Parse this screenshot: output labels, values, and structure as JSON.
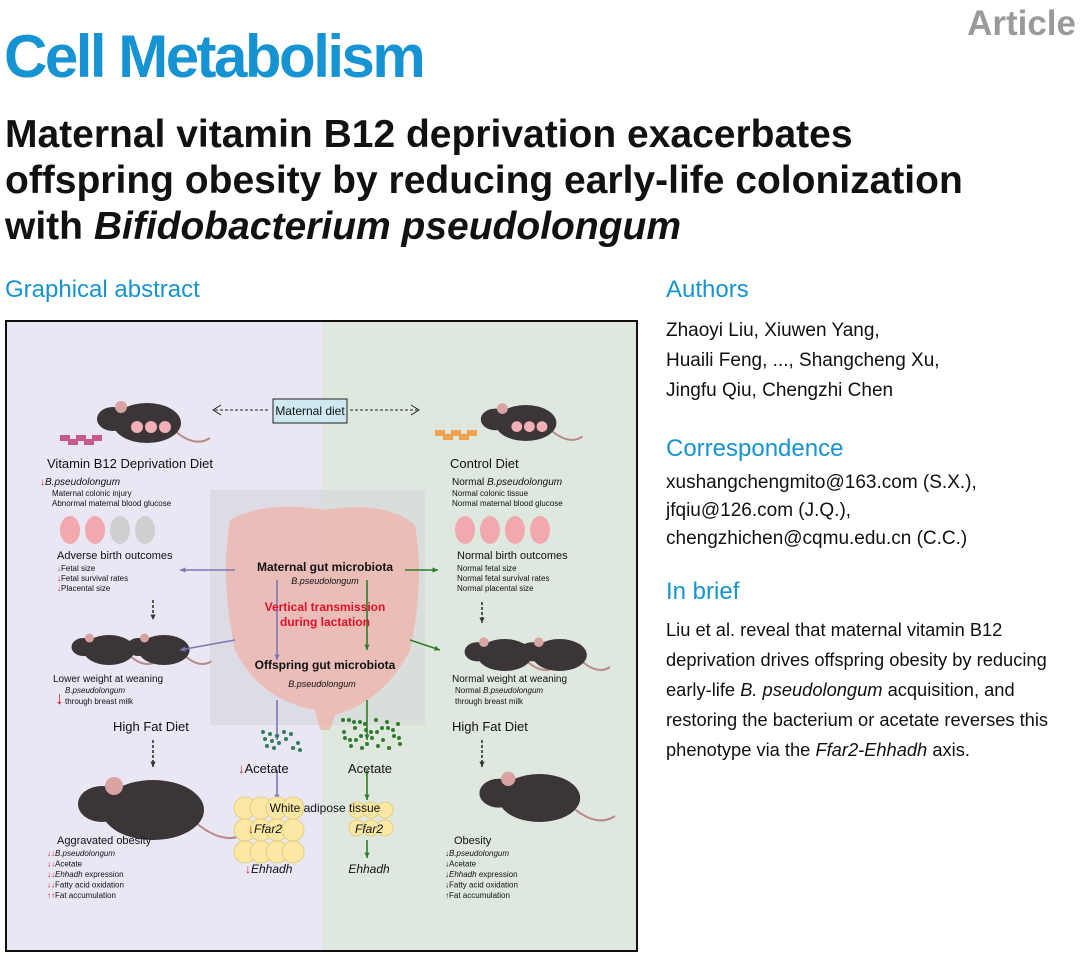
{
  "header": {
    "journal": "Cell Metabolism",
    "type": "Article"
  },
  "title": {
    "lines": [
      "Maternal vitamin B12 deprivation exacerbates",
      "offspring obesity by reducing early-life colonization",
      "with"
    ],
    "italic": "Bifidobacterium pseudolongum"
  },
  "graphical_abstract": {
    "label": "Graphical abstract",
    "maternal_diet": "Maternal diet",
    "left": {
      "diet": "Vitamin B12 Deprivation Diet",
      "bacterium": {
        "arrow": "↓",
        "italic": "B.pseudolongum"
      },
      "maternal_notes": [
        "Maternal colonic injury",
        "Abnormal maternal blood glucose"
      ],
      "birth_heading": "Adverse birth outcomes",
      "birth_items": [
        {
          "arrow": "↓",
          "text": "Fetal size"
        },
        {
          "arrow": "↓",
          "text": "Fetal survival rates"
        },
        {
          "arrow": "↓",
          "text": "Placental size"
        }
      ],
      "weaning_heading": "Lower weight at weaning",
      "weaning_arrow": "↓",
      "weaning_lines": [
        {
          "italic": "B.pseudolongum"
        },
        {
          "text": "through breast milk"
        }
      ],
      "hfd": "High Fat Diet",
      "outcome_heading": "Aggravated obesity",
      "outcome_items": [
        {
          "arrow": "↓↓",
          "italic": "B.pseudolongum"
        },
        {
          "arrow": "↓↓",
          "text": "Acetate"
        },
        {
          "arrow": "↓↓",
          "italic": "Ehhadh",
          "text": "expression"
        },
        {
          "arrow": "↓↓",
          "text": "Fatty acid oxidation"
        },
        {
          "arrow": "↑↑",
          "text": "Fat accumulation"
        }
      ]
    },
    "center": {
      "maternal_microbiota": "Maternal gut microbiota",
      "maternal_bacterium": "B.pseudolongum",
      "transmission": [
        "Vertical transmission",
        "during lactation"
      ],
      "offspring_microbiota": "Offspring gut microbiota",
      "offspring_bacterium": "B.pseudolongum",
      "acetate_left": {
        "arrow": "↓",
        "text": "Acetate"
      },
      "acetate_right": "Acetate",
      "wat": "White adipose tissue",
      "ffar2_left": {
        "arrow": "↓",
        "italic": "Ffar2"
      },
      "ffar2_right": "Ffar2",
      "ehhadh_left": {
        "arrow": "↓",
        "italic": "Ehhadh"
      },
      "ehhadh_right": "Ehhadh"
    },
    "right": {
      "diet": "Control Diet",
      "bacterium": {
        "lead": "Normal",
        "italic": "B.pseudolongum"
      },
      "maternal_notes": [
        "Normal colonic tissue",
        "Normal maternal blood glucose"
      ],
      "birth_heading": "Normal birth outcomes",
      "birth_items": [
        {
          "text": "Normal fetal size"
        },
        {
          "text": "Normal fetal survival rates"
        },
        {
          "text": "Normal placental size"
        }
      ],
      "weaning_heading": "Normal weight at weaning",
      "weaning_lines": [
        {
          "lead": "Normal",
          "italic": "B.pseudolongum"
        },
        {
          "text": "through breast milk"
        }
      ],
      "hfd": "High Fat Diet",
      "outcome_heading": "Obesity",
      "outcome_items": [
        {
          "arrow": "↓",
          "italic": "B.pseudolongum"
        },
        {
          "arrow": "↓",
          "text": "Acetate"
        },
        {
          "arrow": "↓",
          "italic": "Ehhadh",
          "text": "expression"
        },
        {
          "arrow": "↓",
          "text": "Fatty acid oxidation"
        },
        {
          "arrow": "↑",
          "text": "Fat accumulation"
        }
      ]
    }
  },
  "authors": {
    "heading": "Authors",
    "lines": [
      "Zhaoyi Liu, Xiuwen Yang,",
      "Huaili Feng, ..., Shangcheng Xu,",
      "Jingfu Qiu, Chengzhi Chen"
    ]
  },
  "correspondence": {
    "heading": "Correspondence",
    "lines": [
      "xushangchengmito@163.com (S.X.),",
      "jfqiu@126.com (J.Q.),",
      "chengzhichen@cqmu.edu.cn (C.C.)"
    ]
  },
  "in_brief": {
    "heading": "In brief",
    "parts": [
      "Liu et al. reveal that maternal vitamin B12 deprivation drives offspring obesity by reducing early-life",
      "B. pseudolongum",
      "acquisition, and restoring the bacterium or acetate reverses this phenotype via the",
      "Ffar2-Ehhadh",
      "axis."
    ]
  }
}
